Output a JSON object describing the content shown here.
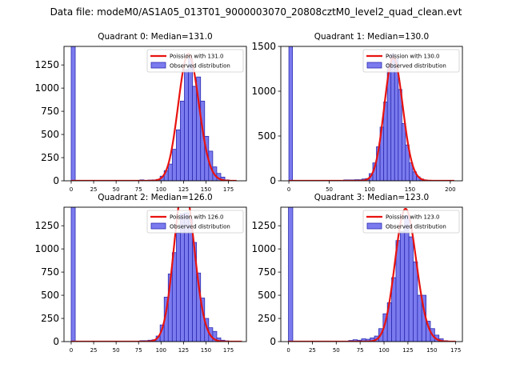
{
  "figure": {
    "suptitle": "Data file: modeM0/AS1A05_013T01_9000003070_20808cztM0_level2_quad_clean.evt"
  },
  "colors": {
    "bar_fill": "#7b7bef",
    "bar_edge": "#2b2bb0",
    "curve": "#e8130f",
    "axis": "#000000"
  },
  "chart_data": [
    {
      "type": "bar",
      "title": "Quadrant 0: Median=131.0",
      "median": 131.0,
      "bin_width": 4.5,
      "xlim": [
        -8,
        195
      ],
      "ylim": [
        0,
        1450
      ],
      "xticks": [
        0,
        25,
        50,
        75,
        100,
        125,
        150,
        175
      ],
      "yticks": [
        0,
        250,
        500,
        750,
        1000,
        1250
      ],
      "legend": {
        "position": "top-right",
        "entries": [
          "Poission with 131.0",
          "Observed distribution"
        ]
      },
      "bins": [
        {
          "x": 0,
          "y": 1450
        },
        {
          "x": 76.5,
          "y": 10
        },
        {
          "x": 85.5,
          "y": 8
        },
        {
          "x": 90,
          "y": 10
        },
        {
          "x": 94.5,
          "y": 15
        },
        {
          "x": 99,
          "y": 50
        },
        {
          "x": 103.5,
          "y": 110
        },
        {
          "x": 108,
          "y": 180
        },
        {
          "x": 112.5,
          "y": 340
        },
        {
          "x": 117,
          "y": 550
        },
        {
          "x": 121.5,
          "y": 860
        },
        {
          "x": 126,
          "y": 1200
        },
        {
          "x": 130.5,
          "y": 1320
        },
        {
          "x": 135,
          "y": 1020
        },
        {
          "x": 139.5,
          "y": 1120
        },
        {
          "x": 144,
          "y": 860
        },
        {
          "x": 148.5,
          "y": 480
        },
        {
          "x": 153,
          "y": 320
        },
        {
          "x": 157.5,
          "y": 150
        },
        {
          "x": 162,
          "y": 80
        },
        {
          "x": 166.5,
          "y": 40
        },
        {
          "x": 171,
          "y": 10
        }
      ],
      "curve_x_range": [
        0,
        184
      ]
    },
    {
      "type": "bar",
      "title": "Quadrant 1: Median=130.0",
      "median": 130.0,
      "bin_width": 4.5,
      "xlim": [
        -10,
        215
      ],
      "ylim": [
        0,
        1500
      ],
      "xticks": [
        0,
        50,
        100,
        150,
        200
      ],
      "yticks": [
        0,
        500,
        1000,
        1500
      ],
      "legend": {
        "position": "top-right",
        "entries": [
          "Poission with 130.0",
          "Observed distribution"
        ]
      },
      "bins": [
        {
          "x": 0,
          "y": 1500
        },
        {
          "x": 68,
          "y": 10
        },
        {
          "x": 72.5,
          "y": 10
        },
        {
          "x": 77,
          "y": 10
        },
        {
          "x": 81.5,
          "y": 12
        },
        {
          "x": 86,
          "y": 12
        },
        {
          "x": 90.5,
          "y": 20
        },
        {
          "x": 95,
          "y": 25
        },
        {
          "x": 99.5,
          "y": 80
        },
        {
          "x": 104,
          "y": 200
        },
        {
          "x": 108.5,
          "y": 380
        },
        {
          "x": 113,
          "y": 600
        },
        {
          "x": 117.5,
          "y": 880
        },
        {
          "x": 122,
          "y": 1310
        },
        {
          "x": 126.5,
          "y": 1410
        },
        {
          "x": 131,
          "y": 1360
        },
        {
          "x": 135.5,
          "y": 1020
        },
        {
          "x": 140,
          "y": 640
        },
        {
          "x": 144.5,
          "y": 400
        },
        {
          "x": 149,
          "y": 200
        },
        {
          "x": 153.5,
          "y": 100
        },
        {
          "x": 158,
          "y": 45
        },
        {
          "x": 162.5,
          "y": 20
        },
        {
          "x": 167,
          "y": 10
        }
      ],
      "curve_x_range": [
        0,
        205
      ]
    },
    {
      "type": "bar",
      "title": "Quadrant 2: Median=126.0",
      "median": 126.0,
      "bin_width": 4.5,
      "xlim": [
        -8,
        195
      ],
      "ylim": [
        0,
        1450
      ],
      "xticks": [
        0,
        25,
        50,
        75,
        100,
        125,
        150,
        175
      ],
      "yticks": [
        0,
        250,
        500,
        750,
        1000,
        1250
      ],
      "legend": {
        "position": "top-right",
        "entries": [
          "Poission with 126.0",
          "Observed distribution"
        ]
      },
      "bins": [
        {
          "x": 0,
          "y": 1450
        },
        {
          "x": 76.5,
          "y": 10
        },
        {
          "x": 81,
          "y": 10
        },
        {
          "x": 85.5,
          "y": 15
        },
        {
          "x": 90,
          "y": 20
        },
        {
          "x": 94.5,
          "y": 60
        },
        {
          "x": 99,
          "y": 180
        },
        {
          "x": 103.5,
          "y": 480
        },
        {
          "x": 108,
          "y": 730
        },
        {
          "x": 112.5,
          "y": 960
        },
        {
          "x": 117,
          "y": 1170
        },
        {
          "x": 121.5,
          "y": 1380
        },
        {
          "x": 126,
          "y": 1390
        },
        {
          "x": 130.5,
          "y": 1320
        },
        {
          "x": 135,
          "y": 1070
        },
        {
          "x": 139.5,
          "y": 740
        },
        {
          "x": 144,
          "y": 470
        },
        {
          "x": 148.5,
          "y": 250
        },
        {
          "x": 153,
          "y": 150
        },
        {
          "x": 157.5,
          "y": 110
        },
        {
          "x": 162,
          "y": 40
        },
        {
          "x": 166.5,
          "y": 15
        },
        {
          "x": 171,
          "y": 8
        }
      ],
      "curve_x_range": [
        0,
        190
      ]
    },
    {
      "type": "bar",
      "title": "Quadrant 3: Median=123.0",
      "median": 123.0,
      "bin_width": 4.5,
      "xlim": [
        -8,
        182
      ],
      "ylim": [
        0,
        1450
      ],
      "xticks": [
        0,
        25,
        50,
        75,
        100,
        125,
        150,
        175
      ],
      "yticks": [
        0,
        250,
        500,
        750,
        1000,
        1250
      ],
      "legend": {
        "position": "top-right",
        "entries": [
          "Poission with 123.0",
          "Observed distribution"
        ]
      },
      "bins": [
        {
          "x": 0,
          "y": 1450
        },
        {
          "x": 63,
          "y": 12
        },
        {
          "x": 67.5,
          "y": 20
        },
        {
          "x": 72,
          "y": 15
        },
        {
          "x": 76.5,
          "y": 30
        },
        {
          "x": 81,
          "y": 25
        },
        {
          "x": 85.5,
          "y": 40
        },
        {
          "x": 90,
          "y": 60
        },
        {
          "x": 94.5,
          "y": 140
        },
        {
          "x": 99,
          "y": 300
        },
        {
          "x": 103.5,
          "y": 420
        },
        {
          "x": 108,
          "y": 690
        },
        {
          "x": 112.5,
          "y": 1090
        },
        {
          "x": 117,
          "y": 1190
        },
        {
          "x": 121.5,
          "y": 1360
        },
        {
          "x": 126,
          "y": 1130
        },
        {
          "x": 130.5,
          "y": 860
        },
        {
          "x": 135,
          "y": 500
        },
        {
          "x": 139.5,
          "y": 500
        },
        {
          "x": 144,
          "y": 220
        },
        {
          "x": 148.5,
          "y": 140
        },
        {
          "x": 153,
          "y": 70
        },
        {
          "x": 157.5,
          "y": 30
        },
        {
          "x": 162,
          "y": 10
        }
      ],
      "curve_x_range": [
        0,
        175
      ]
    }
  ]
}
